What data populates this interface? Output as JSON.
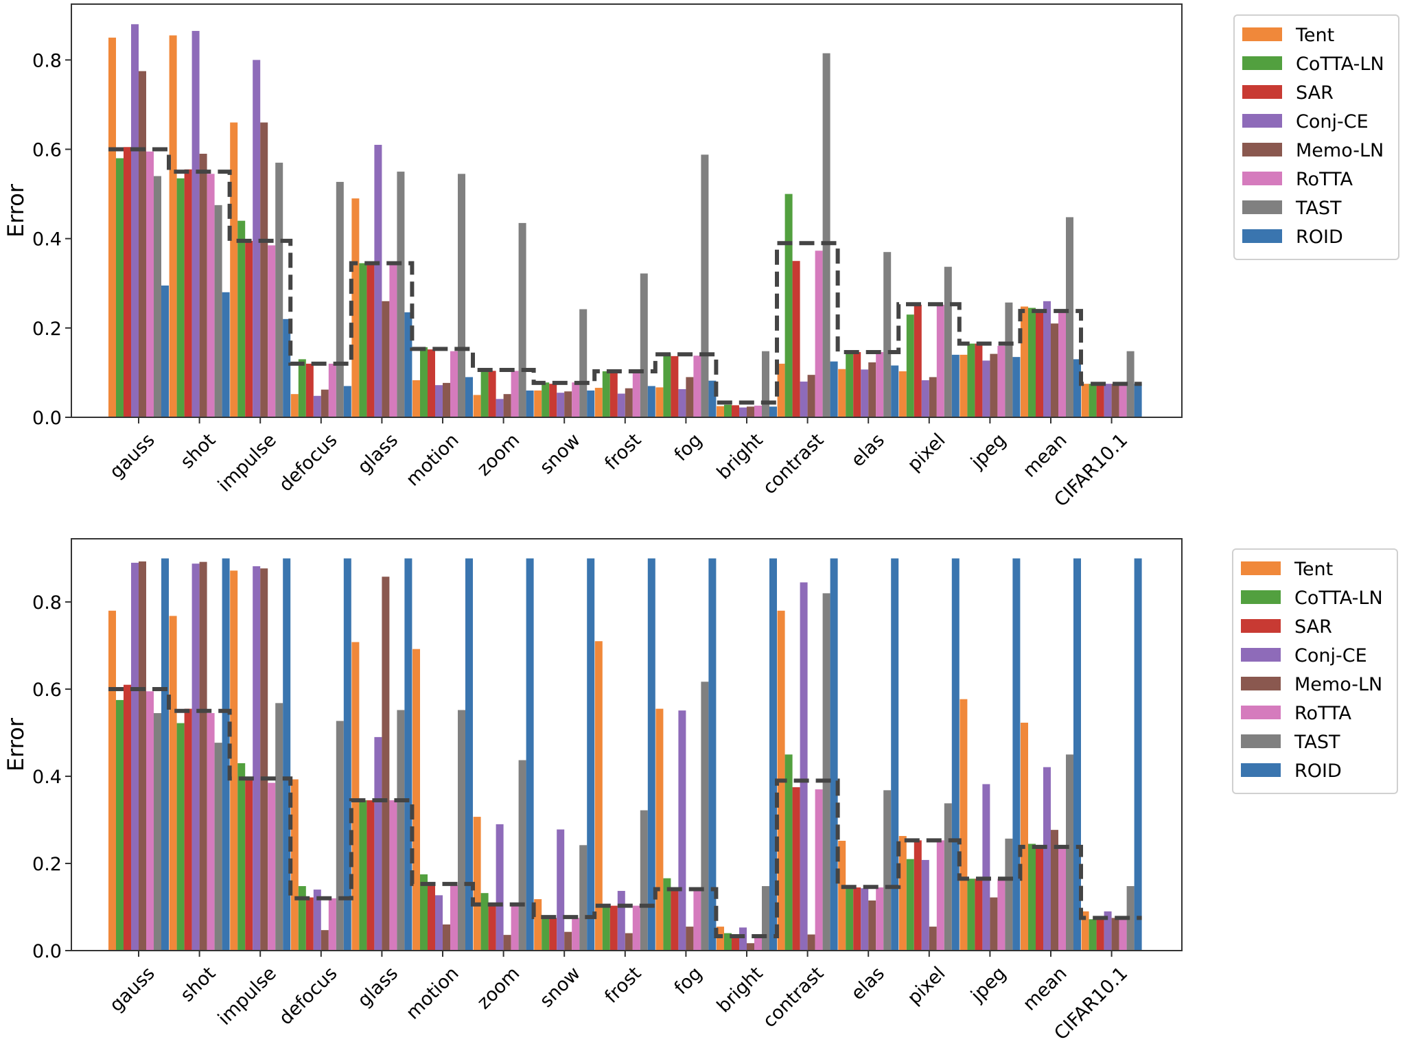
{
  "chart_data": [
    {
      "type": "bar",
      "title": "",
      "xlabel": "",
      "ylabel": "Error",
      "ylim": [
        0,
        0.925
      ],
      "yticks": [
        "0.0",
        "0.2",
        "0.4",
        "0.6",
        "0.8"
      ],
      "legend_position": "outside-right-top",
      "grid": false,
      "categories": [
        "gauss",
        "shot",
        "impulse",
        "defocus",
        "glass",
        "motion",
        "zoom",
        "snow",
        "frost",
        "fog",
        "bright",
        "contrast",
        "elas",
        "pixel",
        "jpeg",
        "mean",
        "CIFAR10.1"
      ],
      "series": [
        {
          "name": "Tent",
          "color": "#f0883a",
          "values": [
            0.85,
            0.855,
            0.66,
            0.052,
            0.49,
            0.083,
            0.05,
            0.06,
            0.066,
            0.067,
            0.025,
            0.12,
            0.108,
            0.103,
            0.14,
            0.248,
            0.075
          ]
        },
        {
          "name": "CoTTA-LN",
          "color": "#52a03f",
          "values": [
            0.58,
            0.535,
            0.44,
            0.13,
            0.345,
            0.157,
            0.107,
            0.078,
            0.103,
            0.143,
            0.028,
            0.5,
            0.146,
            0.23,
            0.165,
            0.245,
            0.075
          ]
        },
        {
          "name": "SAR",
          "color": "#c83a33",
          "values": [
            0.605,
            0.555,
            0.395,
            0.12,
            0.345,
            0.152,
            0.104,
            0.075,
            0.101,
            0.137,
            0.027,
            0.35,
            0.146,
            0.252,
            0.165,
            0.238,
            0.075
          ]
        },
        {
          "name": "Conj-CE",
          "color": "#8e6bb9",
          "values": [
            0.88,
            0.865,
            0.8,
            0.048,
            0.61,
            0.072,
            0.041,
            0.055,
            0.053,
            0.063,
            0.022,
            0.08,
            0.107,
            0.083,
            0.127,
            0.26,
            0.075
          ]
        },
        {
          "name": "Memo-LN",
          "color": "#8a584f",
          "values": [
            0.775,
            0.59,
            0.66,
            0.062,
            0.26,
            0.077,
            0.052,
            0.058,
            0.065,
            0.09,
            0.024,
            0.095,
            0.123,
            0.09,
            0.142,
            0.21,
            0.075
          ]
        },
        {
          "name": "RoTTA",
          "color": "#d57bbd",
          "values": [
            0.595,
            0.545,
            0.385,
            0.12,
            0.345,
            0.148,
            0.104,
            0.078,
            0.101,
            0.138,
            0.026,
            0.373,
            0.146,
            0.252,
            0.16,
            0.235,
            0.075
          ]
        },
        {
          "name": "TAST",
          "color": "#808080",
          "values": [
            0.54,
            0.475,
            0.57,
            0.527,
            0.55,
            0.545,
            0.435,
            0.242,
            0.322,
            0.588,
            0.148,
            0.815,
            0.37,
            0.337,
            0.257,
            0.448,
            0.148
          ]
        },
        {
          "name": "ROID",
          "color": "#3a75af",
          "values": [
            0.295,
            0.28,
            0.22,
            0.07,
            0.235,
            0.09,
            0.06,
            0.06,
            0.07,
            0.082,
            0.024,
            0.125,
            0.116,
            0.14,
            0.135,
            0.13,
            0.075
          ]
        }
      ],
      "reference_step": {
        "style": "dashed",
        "color": "#444444",
        "values": [
          0.6,
          0.55,
          0.395,
          0.12,
          0.345,
          0.153,
          0.106,
          0.077,
          0.103,
          0.141,
          0.033,
          0.39,
          0.146,
          0.253,
          0.165,
          0.238,
          0.075
        ]
      }
    },
    {
      "type": "bar",
      "title": "",
      "xlabel": "",
      "ylabel": "Error",
      "ylim": [
        0,
        0.945
      ],
      "yticks": [
        "0.0",
        "0.2",
        "0.4",
        "0.6",
        "0.8"
      ],
      "legend_position": "outside-right-top",
      "grid": false,
      "categories": [
        "gauss",
        "shot",
        "impulse",
        "defocus",
        "glass",
        "motion",
        "zoom",
        "snow",
        "frost",
        "fog",
        "bright",
        "contrast",
        "elas",
        "pixel",
        "jpeg",
        "mean",
        "CIFAR10.1"
      ],
      "series": [
        {
          "name": "Tent",
          "color": "#f0883a",
          "values": [
            0.78,
            0.768,
            0.872,
            0.393,
            0.708,
            0.692,
            0.307,
            0.118,
            0.71,
            0.555,
            0.055,
            0.78,
            0.252,
            0.263,
            0.577,
            0.523,
            0.09
          ]
        },
        {
          "name": "CoTTA-LN",
          "color": "#52a03f",
          "values": [
            0.575,
            0.522,
            0.43,
            0.148,
            0.345,
            0.175,
            0.132,
            0.08,
            0.103,
            0.166,
            0.04,
            0.45,
            0.148,
            0.21,
            0.165,
            0.245,
            0.072
          ]
        },
        {
          "name": "SAR",
          "color": "#c83a33",
          "values": [
            0.61,
            0.555,
            0.392,
            0.122,
            0.345,
            0.153,
            0.105,
            0.075,
            0.103,
            0.14,
            0.035,
            0.375,
            0.145,
            0.253,
            0.165,
            0.24,
            0.075
          ]
        },
        {
          "name": "Conj-CE",
          "color": "#8e6bb9",
          "values": [
            0.89,
            0.888,
            0.882,
            0.14,
            0.49,
            0.127,
            0.29,
            0.278,
            0.137,
            0.551,
            0.053,
            0.845,
            0.143,
            0.208,
            0.382,
            0.421,
            0.09
          ]
        },
        {
          "name": "Memo-LN",
          "color": "#8a584f",
          "values": [
            0.893,
            0.892,
            0.877,
            0.047,
            0.858,
            0.06,
            0.036,
            0.043,
            0.04,
            0.055,
            0.017,
            0.037,
            0.115,
            0.055,
            0.122,
            0.277,
            0.075
          ]
        },
        {
          "name": "RoTTA",
          "color": "#d57bbd",
          "values": [
            0.595,
            0.545,
            0.385,
            0.12,
            0.345,
            0.15,
            0.105,
            0.075,
            0.103,
            0.14,
            0.029,
            0.37,
            0.145,
            0.253,
            0.165,
            0.235,
            0.075
          ]
        },
        {
          "name": "TAST",
          "color": "#808080",
          "values": [
            0.545,
            0.477,
            0.568,
            0.527,
            0.552,
            0.552,
            0.437,
            0.242,
            0.322,
            0.617,
            0.148,
            0.82,
            0.368,
            0.338,
            0.257,
            0.45,
            0.148
          ]
        },
        {
          "name": "ROID",
          "color": "#3a75af",
          "values": [
            0.9,
            0.9,
            0.9,
            0.9,
            0.9,
            0.9,
            0.9,
            0.9,
            0.9,
            0.9,
            0.9,
            0.9,
            0.9,
            0.9,
            0.9,
            0.9,
            0.9
          ]
        }
      ],
      "reference_step": {
        "style": "dashed",
        "color": "#444444",
        "values": [
          0.6,
          0.55,
          0.395,
          0.12,
          0.345,
          0.153,
          0.106,
          0.077,
          0.103,
          0.141,
          0.033,
          0.39,
          0.146,
          0.253,
          0.165,
          0.238,
          0.075
        ]
      }
    }
  ]
}
